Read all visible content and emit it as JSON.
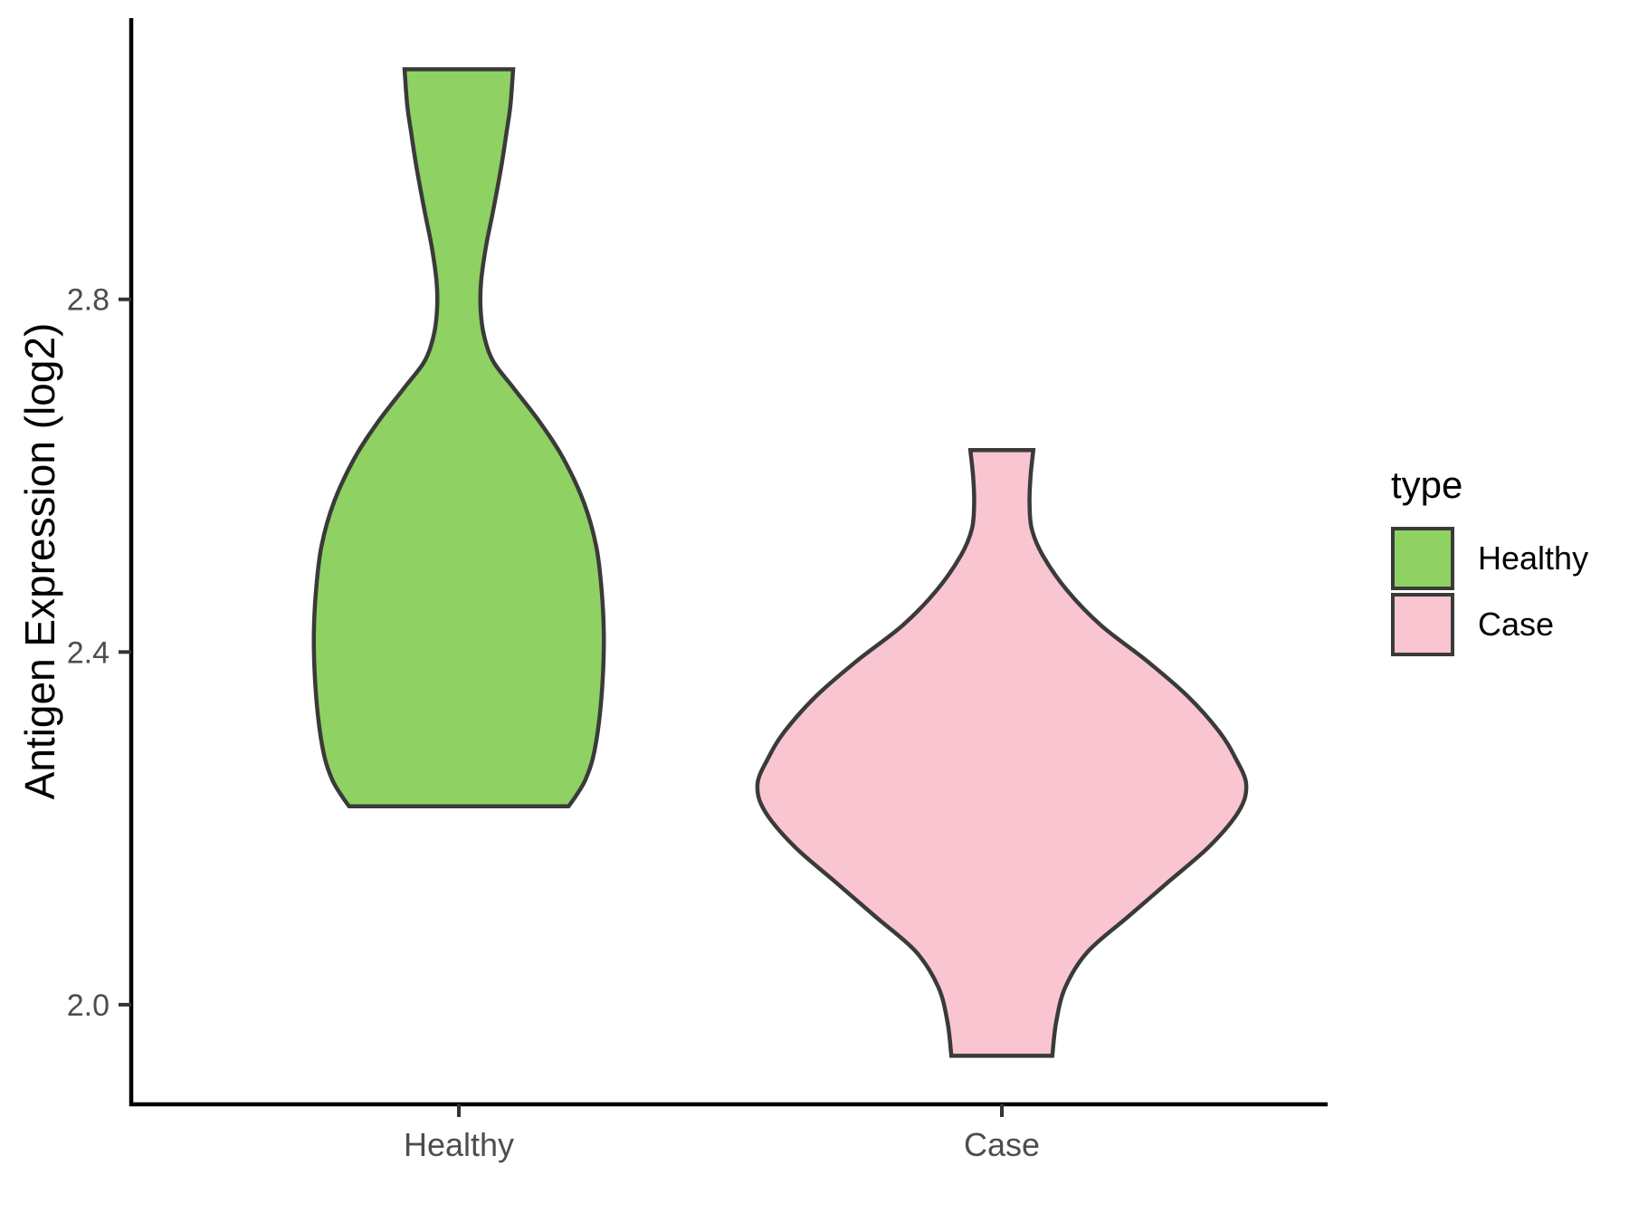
{
  "chart_data": {
    "type": "violin",
    "title": "",
    "xlabel": "",
    "ylabel": "Antigen Expression (log2)",
    "categories": [
      "Healthy",
      "Case"
    ],
    "y_ticks": [
      {
        "label": "2.0",
        "value": 2.0
      },
      {
        "label": "2.4",
        "value": 2.4
      },
      {
        "label": "2.8",
        "value": 2.8
      }
    ],
    "y_axis_range": [
      1.887,
      3.119
    ],
    "grid": "off",
    "legend_position": "right",
    "legend": {
      "title": "type",
      "entries": [
        {
          "label": "Healthy",
          "color": "#8FD162"
        },
        {
          "label": "Case",
          "color": "#F8C5D1"
        }
      ]
    },
    "stroke_color": "#3A3A3A",
    "axis_color": "#000000",
    "tick_color": "#333333",
    "series": [
      {
        "name": "Healthy",
        "category": "Healthy",
        "color": "#8FD162",
        "y_min": 2.225,
        "y_max": 3.06,
        "widest_at": 2.42,
        "profile": [
          [
            3.061,
            0.1
          ],
          [
            3.02,
            0.095
          ],
          [
            2.99,
            0.088
          ],
          [
            2.95,
            0.078
          ],
          [
            2.9,
            0.063
          ],
          [
            2.86,
            0.05
          ],
          [
            2.82,
            0.041
          ],
          [
            2.79,
            0.04
          ],
          [
            2.76,
            0.046
          ],
          [
            2.73,
            0.063
          ],
          [
            2.7,
            0.1
          ],
          [
            2.66,
            0.15
          ],
          [
            2.62,
            0.192
          ],
          [
            2.57,
            0.23
          ],
          [
            2.52,
            0.253
          ],
          [
            2.47,
            0.263
          ],
          [
            2.42,
            0.267
          ],
          [
            2.37,
            0.265
          ],
          [
            2.32,
            0.258
          ],
          [
            2.28,
            0.247
          ],
          [
            2.255,
            0.233
          ],
          [
            2.238,
            0.217
          ],
          [
            2.225,
            0.202
          ]
        ]
      },
      {
        "name": "Case",
        "category": "Case",
        "color": "#F8C5D1",
        "y_min": 1.942,
        "y_max": 2.629,
        "widest_at": 2.25,
        "profile": [
          [
            2.629,
            0.058
          ],
          [
            2.6,
            0.053
          ],
          [
            2.57,
            0.051
          ],
          [
            2.54,
            0.055
          ],
          [
            2.51,
            0.075
          ],
          [
            2.47,
            0.12
          ],
          [
            2.43,
            0.183
          ],
          [
            2.39,
            0.267
          ],
          [
            2.35,
            0.342
          ],
          [
            2.31,
            0.4
          ],
          [
            2.28,
            0.43
          ],
          [
            2.25,
            0.45
          ],
          [
            2.22,
            0.437
          ],
          [
            2.18,
            0.383
          ],
          [
            2.14,
            0.308
          ],
          [
            2.1,
            0.233
          ],
          [
            2.06,
            0.158
          ],
          [
            2.02,
            0.117
          ],
          [
            1.98,
            0.1
          ],
          [
            1.942,
            0.093
          ]
        ]
      }
    ]
  }
}
